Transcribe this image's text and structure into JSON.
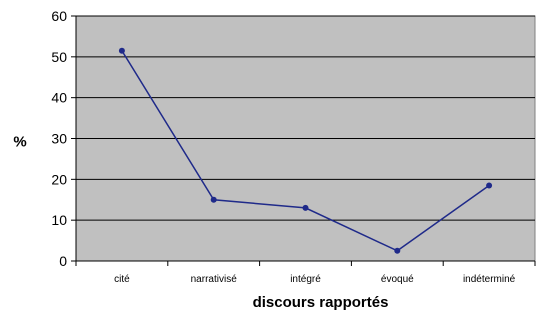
{
  "chart_data": {
    "type": "line",
    "categories": [
      "cité",
      "narrativisé",
      "intégré",
      "évoqué",
      "indéterminé"
    ],
    "values": [
      51.5,
      15,
      13,
      2.5,
      18.5
    ],
    "xlabel": "discours rapportés",
    "ylabel": "%",
    "ylim": [
      0,
      60
    ],
    "yticks": [
      "0",
      "10",
      "20",
      "30",
      "40",
      "50",
      "60"
    ],
    "grid": true,
    "legend": false,
    "colors": {
      "line": "#1f2a8a",
      "marker": "#1f2a8a",
      "plot_background": "#c0c0c0",
      "gridline": "#000000"
    }
  }
}
